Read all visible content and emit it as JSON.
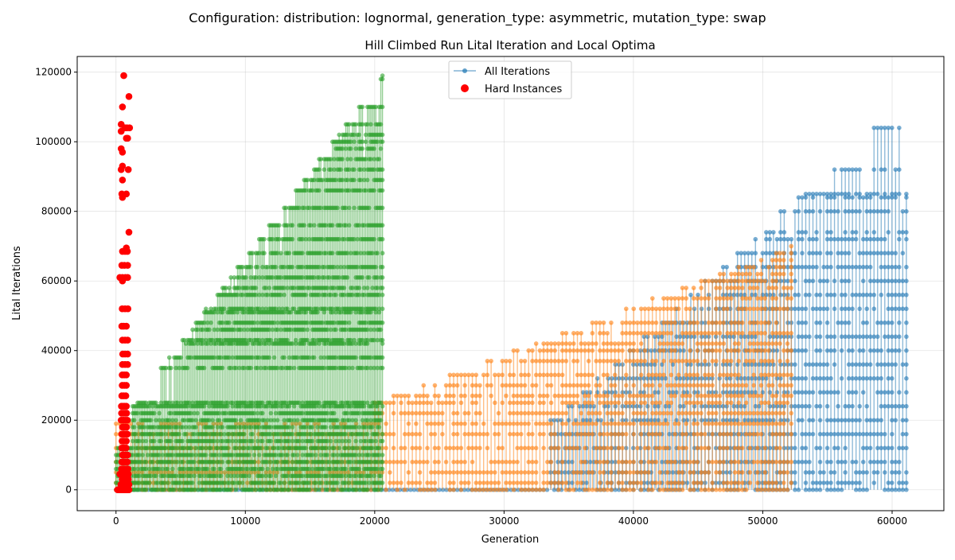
{
  "figure": {
    "suptitle": "Configuration: distribution: lognormal, generation_type: asymmetric, mutation_type: swap"
  },
  "chart_data": {
    "type": "line",
    "title": "Hill Climbed Run Lital Iteration and Local Optima",
    "xlabel": "Generation",
    "ylabel": "Lital Iterations",
    "xlim": [
      -3000,
      64000
    ],
    "ylim": [
      -6000,
      124500
    ],
    "xticks": [
      0,
      10000,
      20000,
      30000,
      40000,
      50000,
      60000
    ],
    "yticks": [
      0,
      20000,
      40000,
      60000,
      80000,
      100000,
      120000
    ],
    "xtick_labels": [
      "0",
      "10000",
      "20000",
      "30000",
      "40000",
      "50000",
      "60000"
    ],
    "ytick_labels": [
      "0",
      "20000",
      "40000",
      "60000",
      "80000",
      "100000",
      "120000"
    ],
    "grid": true,
    "legend": {
      "placement": "upper center",
      "entries": [
        "All Iterations",
        "Hard Instances"
      ]
    },
    "series": [
      {
        "name": "All Iterations",
        "color": "#1f77b4",
        "marker": "circle",
        "x_range": [
          0,
          61100
        ],
        "levels": [
          0,
          2000,
          5000,
          8000,
          12000,
          16000,
          20000,
          24000,
          28000,
          32000,
          36000,
          40000,
          44000,
          48000,
          52000,
          56000,
          60000,
          64000,
          68000,
          72000,
          74000,
          80000,
          84000,
          85000,
          92000,
          104000,
          113000
        ]
      },
      {
        "color": "#ff7f0e",
        "x_range": [
          0,
          52200
        ],
        "levels": [
          0,
          2000,
          5000,
          8000,
          12000,
          16000,
          19000,
          22000,
          25000,
          27000,
          30000,
          33000,
          37000,
          40000,
          42000,
          45000,
          48000,
          52000,
          55000,
          58000,
          60000,
          62000,
          64000,
          66000,
          68000,
          70000
        ]
      },
      {
        "color": "#2ca02c",
        "x_range": [
          0,
          20600
        ],
        "levels": [
          0,
          2000,
          4000,
          6000,
          8000,
          10000,
          12000,
          14000,
          16000,
          18000,
          20000,
          22000,
          24000,
          25000,
          35000,
          38000,
          42000,
          43000,
          46000,
          48000,
          51000,
          52000,
          56000,
          58000,
          61000,
          64000,
          68000,
          72000,
          76000,
          81000,
          86000,
          89000,
          92000,
          95000,
          98000,
          100000,
          102000,
          105000,
          110000,
          118000,
          119000
        ]
      },
      {
        "name": "Hard Instances",
        "color": "#ff0000",
        "marker": "circle",
        "type": "scatter",
        "x": [
          120,
          200,
          280,
          350,
          410,
          470,
          520,
          580,
          640,
          700,
          760,
          820,
          880,
          940,
          1000,
          380,
          450,
          540,
          620,
          700,
          800,
          900,
          1000,
          480,
          560,
          640,
          720,
          860,
          960,
          300,
          390,
          470,
          560,
          650,
          750,
          850,
          950,
          430,
          500,
          600,
          700,
          820,
          920,
          450,
          520,
          610,
          740,
          880,
          500,
          600,
          720,
          900,
          450,
          550,
          650,
          780,
          470,
          560,
          680,
          800,
          450,
          540,
          640,
          760,
          880,
          500,
          600,
          700,
          820,
          400,
          520,
          620,
          750,
          880,
          430,
          560,
          700,
          820,
          420,
          540,
          660,
          800,
          450,
          600,
          760,
          480,
          640,
          800,
          480,
          640,
          800,
          500,
          700,
          900,
          520,
          700,
          900,
          500,
          700,
          900,
          450,
          600,
          800,
          480,
          700,
          920,
          500,
          720,
          900,
          450,
          650,
          900,
          500,
          700,
          880,
          1000
        ],
        "y": [
          0,
          0,
          0,
          0,
          0,
          0,
          0,
          0,
          0,
          0,
          0,
          0,
          0,
          0,
          0,
          1500,
          1500,
          1500,
          1500,
          1500,
          1500,
          1500,
          1500,
          3000,
          3000,
          3000,
          3000,
          3000,
          3000,
          4500,
          4500,
          4500,
          4500,
          4500,
          4500,
          4500,
          4500,
          6000,
          6000,
          6000,
          6000,
          6000,
          6000,
          8000,
          8000,
          8000,
          8000,
          8000,
          10000,
          10000,
          10000,
          10000,
          12000,
          12000,
          12000,
          12000,
          14000,
          14000,
          14000,
          14000,
          16000,
          16000,
          16000,
          16000,
          16000,
          18000,
          18000,
          18000,
          18000,
          20000,
          20000,
          20000,
          20000,
          20000,
          22000,
          22000,
          22000,
          22000,
          24000,
          24000,
          24000,
          24000,
          27000,
          27000,
          27000,
          30000,
          30000,
          30000,
          33000,
          33000,
          33000,
          36000,
          36000,
          36000,
          39000,
          39000,
          39000,
          43000,
          43000,
          43000,
          47000,
          47000,
          47000,
          52000,
          52000,
          52000,
          61000,
          61000,
          61000,
          64500,
          64500,
          64500,
          68500,
          68500,
          68500,
          74000
        ],
        "extra_points": {
          "x": [
            500,
            450,
            800,
            500,
            400,
            500,
            950,
            500,
            400,
            800,
            900,
            1050,
            400,
            850,
            400,
            500,
            700,
            1000,
            600,
            300,
            500,
            800
          ],
          "y": [
            84000,
            85000,
            85000,
            89000,
            92000,
            93000,
            92000,
            97000,
            98000,
            101000,
            101000,
            104000,
            103000,
            104000,
            105000,
            110000,
            104000,
            113000,
            119000,
            61000,
            60000,
            69500
          ]
        }
      }
    ]
  }
}
